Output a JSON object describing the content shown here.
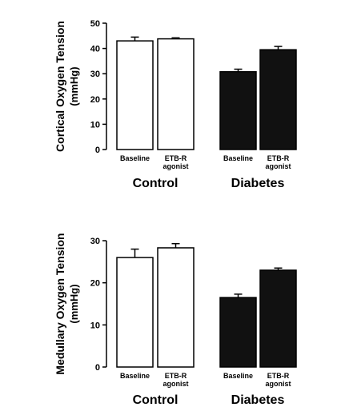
{
  "chart_data": [
    {
      "type": "bar",
      "ylabel": "Cortical Oxygen Tension",
      "yunit": "(mmHg)",
      "ylim": [
        0,
        50
      ],
      "yticks": [
        0,
        10,
        20,
        30,
        40,
        50
      ],
      "categories": [
        {
          "label": [
            "Baseline"
          ],
          "group": "Control",
          "fill": "#ffffff",
          "value": 43,
          "error": 1.5
        },
        {
          "label": [
            "ETB-R",
            "agonist"
          ],
          "group": "Control",
          "fill": "#ffffff",
          "value": 43.8,
          "error": 0.4
        },
        {
          "label": [
            "Baseline"
          ],
          "group": "Diabetes",
          "fill": "#111111",
          "value": 30.8,
          "error": 1.0
        },
        {
          "label": [
            "ETB-R",
            "agonist"
          ],
          "group": "Diabetes",
          "fill": "#111111",
          "value": 39.5,
          "error": 1.3
        }
      ],
      "groups": [
        "Control",
        "Diabetes"
      ]
    },
    {
      "type": "bar",
      "ylabel": "Medullary Oxygen Tension",
      "yunit": "(mmHg)",
      "ylim": [
        0,
        30
      ],
      "yticks": [
        0,
        10,
        20,
        30
      ],
      "categories": [
        {
          "label": [
            "Baseline"
          ],
          "group": "Control",
          "fill": "#ffffff",
          "value": 26,
          "error": 2.0
        },
        {
          "label": [
            "ETB-R",
            "agonist"
          ],
          "group": "Control",
          "fill": "#ffffff",
          "value": 28.3,
          "error": 1.0
        },
        {
          "label": [
            "Baseline"
          ],
          "group": "Diabetes",
          "fill": "#111111",
          "value": 16.5,
          "error": 0.8
        },
        {
          "label": [
            "ETB-R",
            "agonist"
          ],
          "group": "Diabetes",
          "fill": "#111111",
          "value": 23,
          "error": 0.5
        }
      ],
      "groups": [
        "Control",
        "Diabetes"
      ]
    }
  ]
}
